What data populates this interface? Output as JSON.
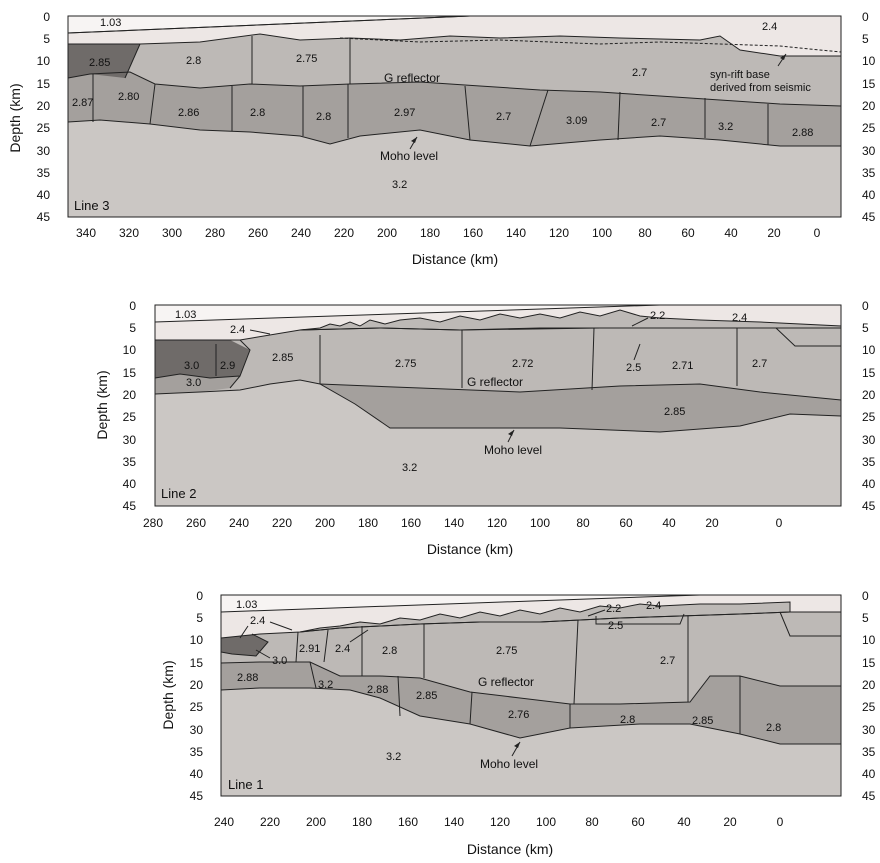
{
  "panels": [
    {
      "id": "line3",
      "line_label": "Line 3",
      "xlabel": "Distance (km)",
      "ylabel": "Depth (km)",
      "x_ticks": [
        "340",
        "320",
        "300",
        "280",
        "260",
        "240",
        "220",
        "200",
        "180",
        "160",
        "140",
        "120",
        "100",
        "80",
        "60",
        "40",
        "20",
        "0"
      ],
      "y_ticks": [
        "0",
        "5",
        "10",
        "15",
        "20",
        "25",
        "30",
        "35",
        "40",
        "45"
      ],
      "densities": [
        "1.03",
        "2.4",
        "2.85",
        "2.8",
        "2.75",
        "2.7",
        "2.87",
        "2.80",
        "2.86",
        "2.8",
        "2.8",
        "2.97",
        "2.7",
        "3.09",
        "2.7",
        "3.2",
        "2.88",
        "3.2"
      ],
      "annotations": {
        "g_reflector": "G reflector",
        "moho": "Moho level",
        "synrift_line1": "syn-rift base",
        "synrift_line2": "derived from seismic"
      }
    },
    {
      "id": "line2",
      "line_label": "Line 2",
      "xlabel": "Distance (km)",
      "ylabel": "Depth (km)",
      "x_ticks": [
        "280",
        "260",
        "240",
        "220",
        "200",
        "180",
        "160",
        "140",
        "120",
        "100",
        "80",
        "60",
        "40",
        "20",
        "0"
      ],
      "y_ticks": [
        "0",
        "5",
        "10",
        "15",
        "20",
        "25",
        "30",
        "35",
        "40",
        "45"
      ],
      "densities": [
        "1.03",
        "2.4",
        "2.2",
        "2.4",
        "3.0",
        "2.9",
        "2.85",
        "2.75",
        "2.72",
        "2.5",
        "2.71",
        "2.7",
        "3.0",
        "2.85",
        "3.2"
      ],
      "annotations": {
        "g_reflector": "G reflector",
        "moho": "Moho level"
      }
    },
    {
      "id": "line1",
      "line_label": "Line 1",
      "xlabel": "Distance (km)",
      "ylabel": "Depth (km)",
      "x_ticks": [
        "240",
        "220",
        "200",
        "180",
        "160",
        "140",
        "120",
        "100",
        "80",
        "60",
        "40",
        "20",
        "0"
      ],
      "y_ticks": [
        "0",
        "5",
        "10",
        "15",
        "20",
        "25",
        "30",
        "35",
        "40",
        "45"
      ],
      "densities": [
        "1.03",
        "2.4",
        "2.2",
        "2.4",
        "2.91",
        "2.4",
        "3.0",
        "2.8",
        "2.75",
        "2.5",
        "2.7",
        "2.88",
        "3.2",
        "2.88",
        "2.85",
        "2.76",
        "2.8",
        "2.85",
        "2.8",
        "3.2"
      ],
      "annotations": {
        "g_reflector": "G reflector",
        "moho": "Moho level"
      }
    }
  ],
  "colors": {
    "water": "#ede7e5",
    "sediment": "#e2dcda",
    "mantle": "#cbc7c4",
    "upper_crust": "#bdb9b6",
    "lower_crust": "#a4a09d",
    "dense_block": "#6f6b69",
    "outline": "#222222"
  }
}
